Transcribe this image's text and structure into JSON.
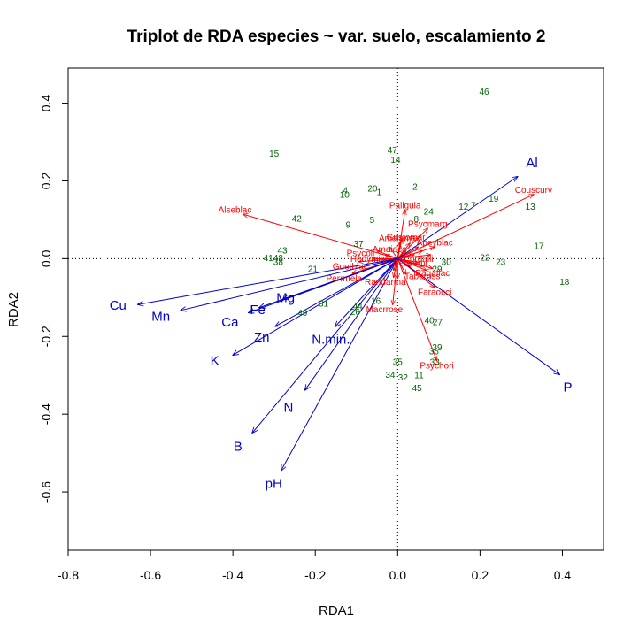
{
  "chart_data": {
    "type": "scatter",
    "title": "Triplot de RDA especies ~ var. suelo, escalamiento 2",
    "xlabel": "RDA1",
    "ylabel": "RDA2",
    "xlim": [
      -0.8,
      0.5
    ],
    "ylim": [
      -0.75,
      0.49
    ],
    "xticks": [
      "-0.8",
      "-0.6",
      "-0.4",
      "-0.2",
      "0.0",
      "0.2",
      "0.4"
    ],
    "yticks": [
      "-0.6",
      "-0.4",
      "-0.2",
      "0.0",
      "0.2",
      "0.4"
    ],
    "zero_lines": true,
    "colors": {
      "sites": "#006400",
      "species": "#ff0000",
      "env": "#0000cc"
    },
    "sites": [
      {
        "label": "46",
        "x": 0.21,
        "y": 0.43
      },
      {
        "label": "15",
        "x": -0.3,
        "y": 0.27
      },
      {
        "label": "47",
        "x": -0.013,
        "y": 0.28
      },
      {
        "label": "14",
        "x": -0.005,
        "y": 0.255
      },
      {
        "label": "4",
        "x": -0.127,
        "y": 0.176
      },
      {
        "label": "10",
        "x": -0.129,
        "y": 0.165
      },
      {
        "label": "20",
        "x": -0.061,
        "y": 0.181
      },
      {
        "label": "1",
        "x": -0.045,
        "y": 0.171
      },
      {
        "label": "2",
        "x": 0.042,
        "y": 0.185
      },
      {
        "label": "12",
        "x": 0.16,
        "y": 0.134
      },
      {
        "label": "7",
        "x": 0.184,
        "y": 0.137
      },
      {
        "label": "19",
        "x": 0.233,
        "y": 0.154
      },
      {
        "label": "13",
        "x": 0.322,
        "y": 0.134
      },
      {
        "label": "24",
        "x": 0.075,
        "y": 0.121
      },
      {
        "label": "8",
        "x": 0.045,
        "y": 0.102
      },
      {
        "label": "42",
        "x": -0.245,
        "y": 0.103
      },
      {
        "label": "9",
        "x": -0.12,
        "y": 0.087
      },
      {
        "label": "5",
        "x": -0.062,
        "y": 0.1
      },
      {
        "label": "37",
        "x": -0.095,
        "y": 0.038
      },
      {
        "label": "43",
        "x": -0.28,
        "y": 0.021
      },
      {
        "label": "41",
        "x": -0.314,
        "y": 0.002
      },
      {
        "label": "48",
        "x": -0.29,
        "y": 0.002
      },
      {
        "label": "38",
        "x": -0.29,
        "y": -0.008
      },
      {
        "label": "21",
        "x": -0.206,
        "y": -0.027
      },
      {
        "label": "17",
        "x": 0.343,
        "y": 0.033
      },
      {
        "label": "22",
        "x": 0.212,
        "y": 0.003
      },
      {
        "label": "23",
        "x": 0.25,
        "y": -0.008
      },
      {
        "label": "18",
        "x": 0.405,
        "y": -0.06
      },
      {
        "label": "31",
        "x": -0.18,
        "y": -0.115
      },
      {
        "label": "49",
        "x": -0.231,
        "y": -0.139
      },
      {
        "label": "44",
        "x": -0.097,
        "y": -0.122
      },
      {
        "label": "26",
        "x": -0.103,
        "y": -0.137
      },
      {
        "label": "16",
        "x": -0.053,
        "y": -0.108
      },
      {
        "label": "40",
        "x": 0.077,
        "y": -0.158
      },
      {
        "label": "27",
        "x": 0.097,
        "y": -0.163
      },
      {
        "label": "29",
        "x": 0.096,
        "y": -0.026
      },
      {
        "label": "30",
        "x": 0.118,
        "y": -0.008
      },
      {
        "label": "39",
        "x": 0.096,
        "y": -0.228
      },
      {
        "label": "36",
        "x": 0.088,
        "y": -0.238
      },
      {
        "label": "33",
        "x": 0.09,
        "y": -0.265
      },
      {
        "label": "35",
        "x": 0.0,
        "y": -0.265
      },
      {
        "label": "34",
        "x": -0.018,
        "y": -0.298
      },
      {
        "label": "32",
        "x": 0.013,
        "y": -0.305
      },
      {
        "label": "11",
        "x": 0.052,
        "y": -0.3
      },
      {
        "label": "45",
        "x": 0.047,
        "y": -0.333
      }
    ],
    "species": [
      {
        "label": "Alseblac",
        "x": -0.375,
        "y": 0.114
      },
      {
        "label": "Couscurv",
        "x": 0.33,
        "y": 0.165
      },
      {
        "label": "Paliguia",
        "x": 0.018,
        "y": 0.125
      },
      {
        "label": "Psycmarg",
        "x": 0.073,
        "y": 0.078
      },
      {
        "label": "Faraocci",
        "x": 0.09,
        "y": -0.074
      },
      {
        "label": "Macrrose",
        "x": -0.012,
        "y": -0.118
      },
      {
        "label": "Psychori",
        "x": 0.095,
        "y": -0.262
      },
      {
        "label": "Randarma",
        "x": -0.01,
        "y": -0.048
      },
      {
        "label": "Perrmela",
        "x": -0.11,
        "y": -0.038
      },
      {
        "label": "Guetblac",
        "x": -0.095,
        "y": -0.008
      },
      {
        "label": "Amalamac",
        "x": 0.005,
        "y": 0.041
      },
      {
        "label": "Apeyblac",
        "x": 0.09,
        "y": 0.03
      },
      {
        "label": "Pagaflac",
        "x": 0.085,
        "y": -0.025
      }
    ],
    "species_labels_only": [
      {
        "label": "Psycoli",
        "x": -0.09,
        "y": 0.015
      },
      {
        "label": "Hedymixt",
        "x": -0.07,
        "y": 0.0
      },
      {
        "label": "Amaiacc",
        "x": -0.02,
        "y": 0.025
      },
      {
        "label": "Gustomar",
        "x": 0.02,
        "y": 0.055
      },
      {
        "label": "Celtsemi",
        "x": 0.03,
        "y": -0.01
      },
      {
        "label": "Cordalli",
        "x": 0.05,
        "y": 0.0
      },
      {
        "label": "Tabeross",
        "x": 0.06,
        "y": -0.045
      }
    ],
    "env": [
      {
        "label": "Al",
        "x": 0.291,
        "y": 0.211
      },
      {
        "label": "P",
        "x": 0.393,
        "y": -0.298
      },
      {
        "label": "Cu",
        "x": -0.631,
        "y": -0.118
      },
      {
        "label": "Mn",
        "x": -0.527,
        "y": -0.133
      },
      {
        "label": "Ca",
        "x": -0.362,
        "y": -0.139
      },
      {
        "label": "Fe",
        "x": -0.336,
        "y": -0.126
      },
      {
        "label": "Mg",
        "x": -0.278,
        "y": -0.104
      },
      {
        "label": "Zn",
        "x": -0.297,
        "y": -0.174
      },
      {
        "label": "K",
        "x": -0.4,
        "y": -0.248
      },
      {
        "label": "N.min.",
        "x": -0.152,
        "y": -0.175
      },
      {
        "label": "N",
        "x": -0.225,
        "y": -0.338
      },
      {
        "label": "B",
        "x": -0.353,
        "y": -0.448
      },
      {
        "label": "pH",
        "x": -0.283,
        "y": -0.545
      }
    ],
    "env_label_offsets": {
      "Al": [
        0.035,
        0.035
      ],
      "P": [
        0.02,
        -0.032
      ],
      "Cu": [
        -0.048,
        -0.002
      ],
      "Mn": [
        -0.048,
        -0.015
      ],
      "Ca": [
        -0.045,
        -0.024
      ],
      "Fe": [
        -0.004,
        -0.005
      ],
      "Mg": [
        0.006,
        0.004
      ],
      "Zn": [
        -0.033,
        -0.028
      ],
      "K": [
        -0.044,
        -0.014
      ],
      "N.min.": [
        -0.01,
        -0.032
      ],
      "N": [
        -0.04,
        -0.045
      ],
      "B": [
        -0.035,
        -0.035
      ],
      "pH": [
        -0.018,
        -0.033
      ]
    }
  }
}
